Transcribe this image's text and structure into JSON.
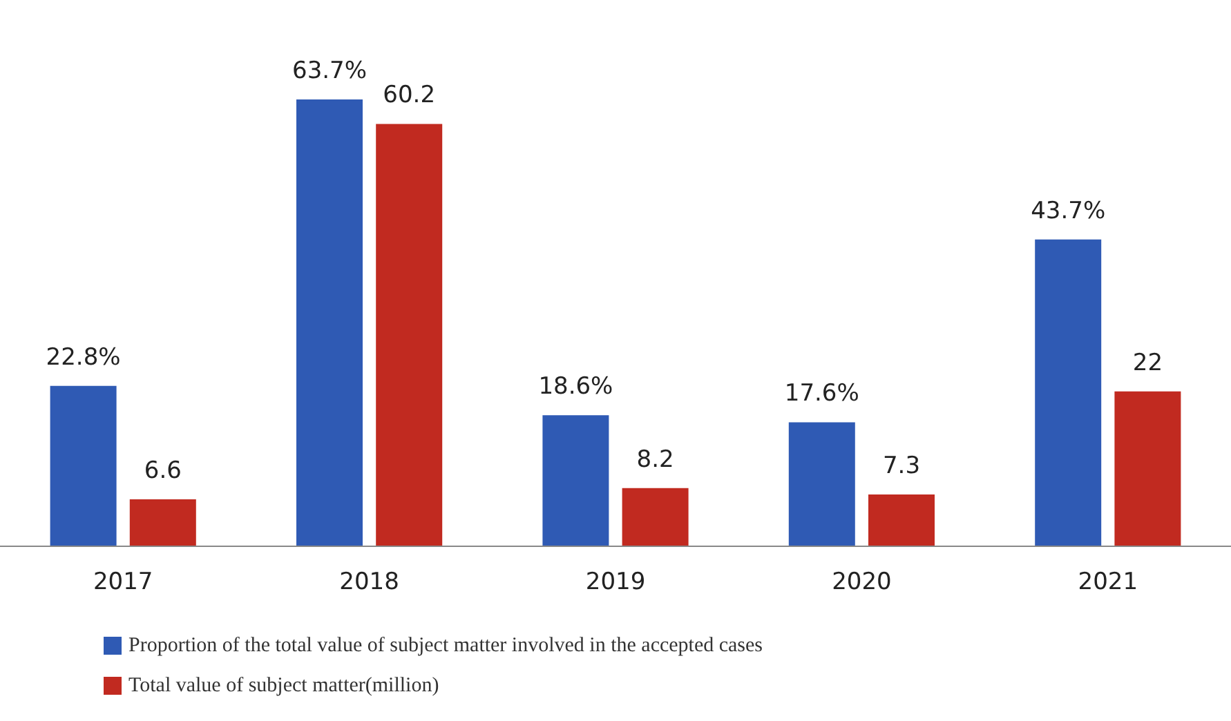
{
  "chart_data": {
    "type": "bar",
    "categories": [
      "2017",
      "2018",
      "2019",
      "2020",
      "2021"
    ],
    "series": [
      {
        "name": "Proportion of the total value of subject matter involved in the accepted cases",
        "color": "#2f5ab4",
        "values": [
          22.8,
          63.7,
          18.6,
          17.6,
          43.7
        ],
        "value_labels": [
          "22.8%",
          "63.7%",
          "18.6%",
          "17.6%",
          "43.7%"
        ]
      },
      {
        "name": "Total value of subject matter(million)",
        "color": "#c12a20",
        "values": [
          6.6,
          60.2,
          8.2,
          7.3,
          22
        ],
        "value_labels": [
          "6.6",
          "60.2",
          "8.2",
          "7.3",
          "22"
        ]
      }
    ],
    "legend": "bottom left"
  }
}
